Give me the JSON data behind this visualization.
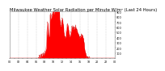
{
  "title": "Milwaukee Weather Solar Radiation per Minute W/m² (Last 24 Hours)",
  "title_fontsize": 3.8,
  "background_color": "#ffffff",
  "plot_bg_color": "#ffffff",
  "fill_color": "#ff0000",
  "line_color": "#cc0000",
  "grid_color": "#bbbbbb",
  "ylim": [
    0,
    900
  ],
  "yticks": [
    100,
    200,
    300,
    400,
    500,
    600,
    700,
    800,
    900
  ],
  "ytick_fontsize": 2.5,
  "xtick_fontsize": 2.3,
  "n_points": 1440
}
